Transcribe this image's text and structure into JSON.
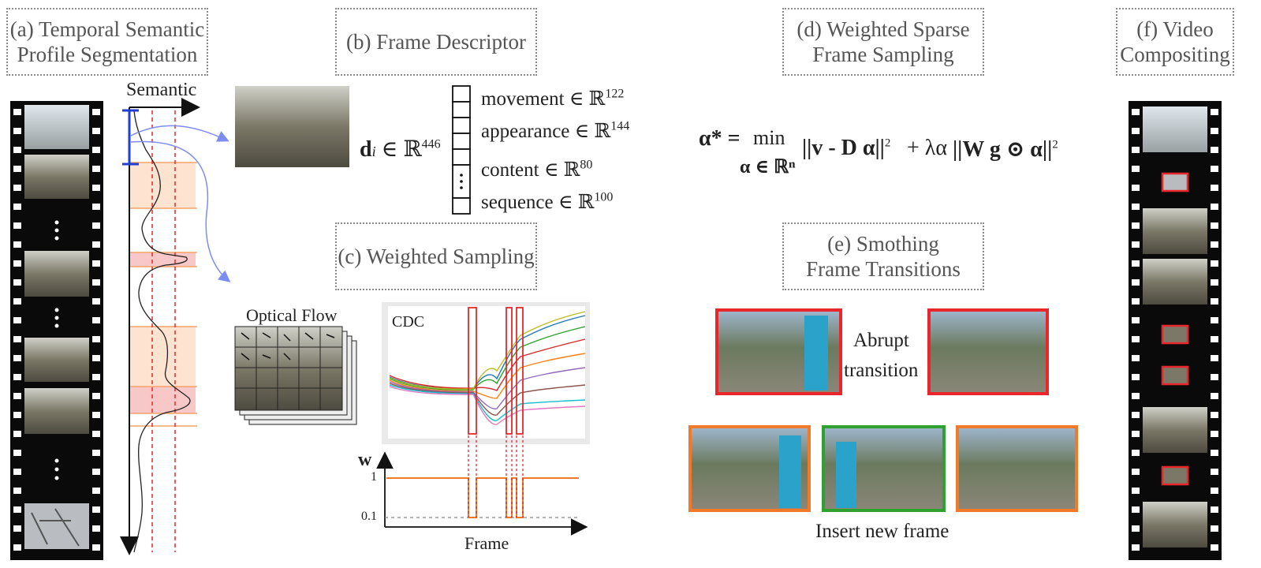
{
  "panels": {
    "a": {
      "line1": "(a) Temporal Semantic",
      "line2": "Profile Segmentation"
    },
    "b": {
      "line1": "(b) Frame Descriptor"
    },
    "c": {
      "line1": "(c) Weighted Sampling"
    },
    "d": {
      "line1": "(d) Weighted Sparse",
      "line2": "Frame Sampling"
    },
    "e": {
      "line1": "(e) Smothing",
      "line2": "Frame Transitions"
    },
    "f": {
      "line1": "(f) Video",
      "line2": "Compositing"
    }
  },
  "semantic_axis_label": "Semantic",
  "descriptor": {
    "vector": "d",
    "vector_sub": "i",
    "vector_dim": "∈ ℝ",
    "vector_sup": "446",
    "items": [
      {
        "name": "movement ∈ ℝ",
        "dim": "122"
      },
      {
        "name": "appearance ∈ ℝ",
        "dim": "144"
      },
      {
        "name": "content ∈ ℝ",
        "dim": "80"
      },
      {
        "name": "sequence ∈ ℝ",
        "dim": "100"
      }
    ]
  },
  "optical_flow_label": "Optical Flow",
  "cdc_label": "CDC",
  "weight_plot": {
    "ylabel": "w",
    "xlabel": "Frame",
    "tick_high": "1",
    "tick_low": "0.1"
  },
  "equation": {
    "lhs": "α* =",
    "min": "min",
    "domain": "α ∈ ℝⁿ",
    "term1": "||v - D α||",
    "sq1": "2",
    "plus": "+ λα",
    "term2": "||W g ⊙ α||",
    "sq2": "2"
  },
  "transition": {
    "abrupt": "Abrupt",
    "abrupt2": "transition",
    "insert": "Insert new frame"
  },
  "colors": {
    "red": "#e8262c",
    "orange": "#f07a2a",
    "green": "#2ea12e",
    "blue": "#1f3fd0",
    "band": "#f8c7c7",
    "band_light": "#fde3d0"
  }
}
